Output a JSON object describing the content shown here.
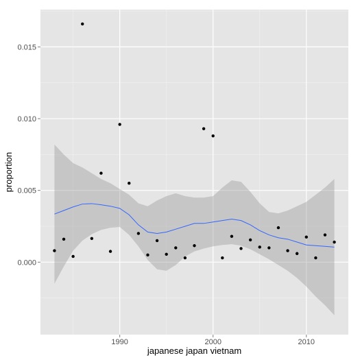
{
  "chart_data": {
    "type": "scatter",
    "title": "",
    "xlabel": "japanese japan vietnam",
    "ylabel": "proportion",
    "xlim": [
      1981.5,
      2014.5
    ],
    "ylim": [
      -0.00505,
      0.0176
    ],
    "x_ticks": [
      1990,
      2000,
      2010
    ],
    "x_tick_labels": [
      "1990",
      "2000",
      "2010"
    ],
    "y_ticks": [
      0.0,
      0.005,
      0.01,
      0.015
    ],
    "y_tick_labels": [
      "0.000",
      "0.005",
      "0.010",
      "0.015"
    ],
    "grid": true,
    "legend": "none",
    "points": {
      "x": [
        1983,
        1984,
        1985,
        1986,
        1987,
        1988,
        1989,
        1990,
        1991,
        1992,
        1993,
        1994,
        1995,
        1996,
        1997,
        1998,
        1999,
        2000,
        2001,
        2002,
        2003,
        2004,
        2005,
        2006,
        2007,
        2008,
        2009,
        2010,
        2011,
        2012,
        2013
      ],
      "y": [
        0.0008,
        0.0016,
        0.0004,
        0.0166,
        0.00165,
        0.0062,
        0.00075,
        0.0096,
        0.0055,
        0.002,
        0.0005,
        0.0015,
        0.00055,
        0.001,
        0.0003,
        0.00115,
        0.0093,
        0.0088,
        0.0003,
        0.0018,
        0.00095,
        0.00155,
        0.00105,
        0.001,
        0.0024,
        0.0008,
        0.0006,
        0.00175,
        0.0003,
        0.0019,
        0.0014
      ]
    },
    "smooth": {
      "x": [
        1983,
        1984,
        1985,
        1986,
        1987,
        1988,
        1989,
        1990,
        1991,
        1992,
        1993,
        1994,
        1995,
        1996,
        1997,
        1998,
        1999,
        2000,
        2001,
        2002,
        2003,
        2004,
        2005,
        2006,
        2007,
        2008,
        2009,
        2010,
        2011,
        2012,
        2013
      ],
      "y": [
        0.00335,
        0.0036,
        0.00385,
        0.00405,
        0.00408,
        0.004,
        0.0039,
        0.00375,
        0.0033,
        0.0026,
        0.0021,
        0.002,
        0.0021,
        0.0023,
        0.0025,
        0.0027,
        0.0027,
        0.0028,
        0.0029,
        0.003,
        0.0029,
        0.0026,
        0.0022,
        0.0019,
        0.0017,
        0.0016,
        0.0014,
        0.0012,
        0.00115,
        0.0011,
        0.00105
      ],
      "lower": [
        -0.0015,
        -0.0003,
        0.0008,
        0.0015,
        0.00195,
        0.00225,
        0.0024,
        0.00245,
        0.0019,
        0.0011,
        0.00015,
        -0.0005,
        -0.0006,
        -0.0002,
        0.0004,
        0.00075,
        0.00095,
        0.0011,
        0.0012,
        0.00125,
        0.00115,
        0.0009,
        0.00055,
        0.0002,
        -0.0002,
        -0.0006,
        -0.0011,
        -0.0017,
        -0.0024,
        -0.003,
        -0.0037
      ],
      "upper": [
        0.0082,
        0.0075,
        0.0069,
        0.0066,
        0.0062,
        0.0058,
        0.0055,
        0.0051,
        0.0047,
        0.0041,
        0.0039,
        0.0043,
        0.0046,
        0.0048,
        0.0046,
        0.0045,
        0.0045,
        0.0046,
        0.0052,
        0.0057,
        0.0056,
        0.0049,
        0.0041,
        0.0035,
        0.0034,
        0.0036,
        0.0039,
        0.0042,
        0.0047,
        0.0052,
        0.0058
      ]
    },
    "colors": {
      "panel_background": "#e5e5e5",
      "grid_major": "#ffffff",
      "grid_minor": "#f2f2f2",
      "ribbon": "#999999",
      "smooth_line": "#3366ff",
      "point": "#000000",
      "tick_label": "#4d4d4d",
      "tick_mark": "#7f7f7f"
    }
  }
}
